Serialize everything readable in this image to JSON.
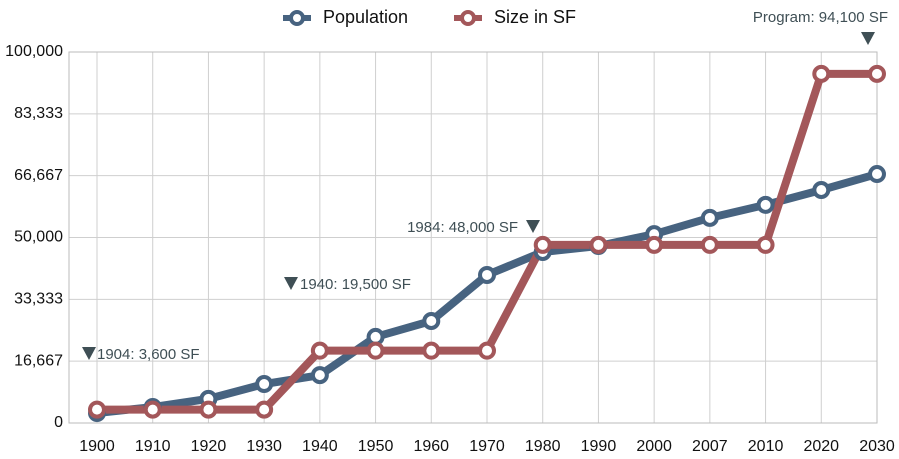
{
  "chart_data": {
    "type": "line",
    "categories": [
      "1900",
      "1910",
      "1920",
      "1930",
      "1940",
      "1950",
      "1960",
      "1970",
      "1980",
      "1990",
      "2000",
      "2007",
      "2010",
      "2020",
      "2030"
    ],
    "series": [
      {
        "name": "Population",
        "color": "#476380",
        "values": [
          2700,
          4300,
          6500,
          10500,
          12900,
          23200,
          27500,
          39900,
          46100,
          47700,
          50900,
          55300,
          58800,
          62800,
          67100
        ]
      },
      {
        "name": "Size in SF",
        "color": "#a3575a",
        "values": [
          3600,
          3600,
          3600,
          3600,
          19500,
          19500,
          19500,
          19500,
          48000,
          48000,
          48000,
          48000,
          48000,
          94100,
          94100
        ]
      }
    ],
    "ylim": [
      0,
      100000
    ],
    "yticks": [
      0,
      {
        "value": 16667,
        "label": "16,667"
      },
      {
        "value": 33333,
        "label": "33,333"
      },
      {
        "value": 50000,
        "label": "50,000"
      },
      {
        "value": 66667,
        "label": "66,667"
      },
      {
        "value": 83333,
        "label": "83,333"
      },
      {
        "value": 100000,
        "label": "100,000"
      }
    ],
    "grid": true,
    "legend": "top",
    "annotations": [
      "1904: 3,600 SF",
      "1940: 19,500 SF",
      "1984: 48,000 SF",
      "Program: 94,100 SF"
    ]
  }
}
